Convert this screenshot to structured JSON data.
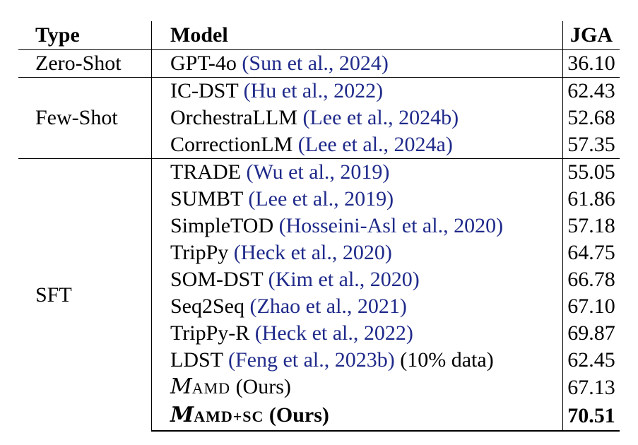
{
  "headers": {
    "type": "Type",
    "model": "Model",
    "jga": "JGA"
  },
  "groups": [
    {
      "type": "Zero-Shot",
      "rows": [
        {
          "model": "GPT-4o",
          "cite": "(Sun et al., 2024)",
          "extra": "",
          "jga": "36.10"
        }
      ]
    },
    {
      "type": "Few-Shot",
      "rows": [
        {
          "model": "IC-DST",
          "cite": "(Hu et al., 2022)",
          "extra": "",
          "jga": "62.43"
        },
        {
          "model": "OrchestraLLM",
          "cite": "(Lee et al., 2024b)",
          "extra": "",
          "jga": "52.68"
        },
        {
          "model": "CorrectionLM",
          "cite": "(Lee et al., 2024a)",
          "extra": "",
          "jga": "57.35"
        }
      ]
    },
    {
      "type": "SFT",
      "rows": [
        {
          "model": "TRADE",
          "cite": "(Wu et al., 2019)",
          "extra": "",
          "jga": "55.05"
        },
        {
          "model": "SUMBT",
          "cite": "(Lee et al., 2019)",
          "extra": "",
          "jga": "61.86"
        },
        {
          "model": "SimpleTOD",
          "cite": "(Hosseini-Asl et al., 2020)",
          "extra": "",
          "jga": "57.18"
        },
        {
          "model": "TripPy",
          "cite": "(Heck et al., 2020)",
          "extra": "",
          "jga": "64.75"
        },
        {
          "model": "SOM-DST",
          "cite": "(Kim et al., 2020)",
          "extra": "",
          "jga": "66.78"
        },
        {
          "model": "Seq2Seq",
          "cite": "(Zhao et al., 2021)",
          "extra": "",
          "jga": "67.10"
        },
        {
          "model": "TripPy-R",
          "cite": "(Heck et al., 2022)",
          "extra": "",
          "jga": "69.87"
        },
        {
          "model": "LDST",
          "cite": "(Feng et al., 2023b)",
          "extra": "(10% data)",
          "jga": "62.45"
        }
      ]
    }
  ],
  "ours": [
    {
      "symbol": "M",
      "subscript": "AMD",
      "label": "(Ours)",
      "jga": "67.13",
      "bold": false
    },
    {
      "symbol": "M",
      "subscript": "AMD+SC",
      "label": "(Ours)",
      "jga": "70.51",
      "bold": true
    }
  ]
}
